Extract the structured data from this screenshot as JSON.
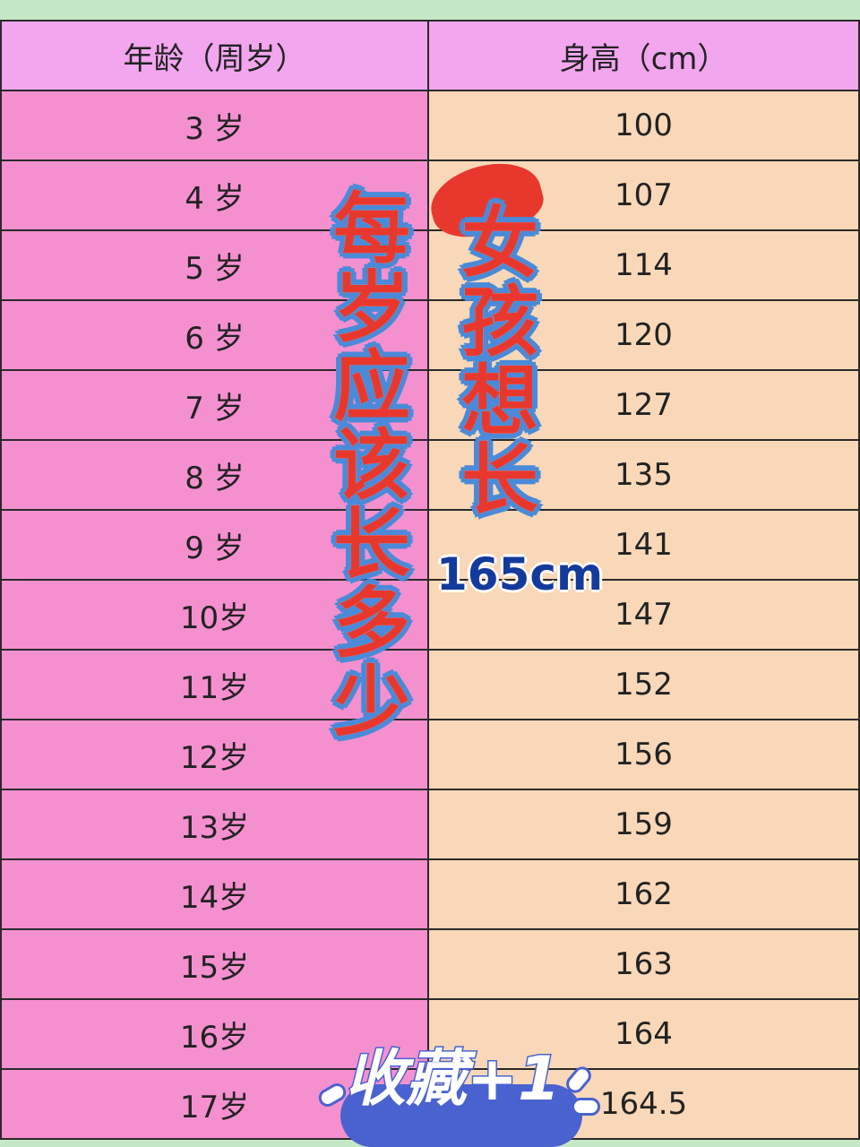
{
  "table": {
    "headers": [
      "年龄（周岁）",
      "身高（cm）"
    ],
    "rows": [
      {
        "age": "3 岁",
        "height": "100"
      },
      {
        "age": "4 岁",
        "height": "107"
      },
      {
        "age": "5 岁",
        "height": "114"
      },
      {
        "age": "6 岁",
        "height": "120"
      },
      {
        "age": "7 岁",
        "height": "127"
      },
      {
        "age": "8 岁",
        "height": "135"
      },
      {
        "age": "9 岁",
        "height": "141"
      },
      {
        "age": "10岁",
        "height": "147"
      },
      {
        "age": "11岁",
        "height": "152"
      },
      {
        "age": "12岁",
        "height": "156"
      },
      {
        "age": "13岁",
        "height": "159"
      },
      {
        "age": "14岁",
        "height": "162"
      },
      {
        "age": "15岁",
        "height": "163"
      },
      {
        "age": "16岁",
        "height": "164"
      },
      {
        "age": "17岁",
        "height": "164.5"
      }
    ]
  },
  "overlay": {
    "title_left": [
      "每",
      "岁",
      "应",
      "该",
      "长",
      "多",
      "少"
    ],
    "title_right": [
      "女",
      "孩",
      "想",
      "长"
    ],
    "target": "165cm",
    "favorite": "收藏+1"
  },
  "colors": {
    "header": "#f2a6ee",
    "age_col": "#f590cf",
    "height_col": "#f8d8b8",
    "title_red": "#e8382d",
    "badge_blue": "#4a62d0"
  }
}
